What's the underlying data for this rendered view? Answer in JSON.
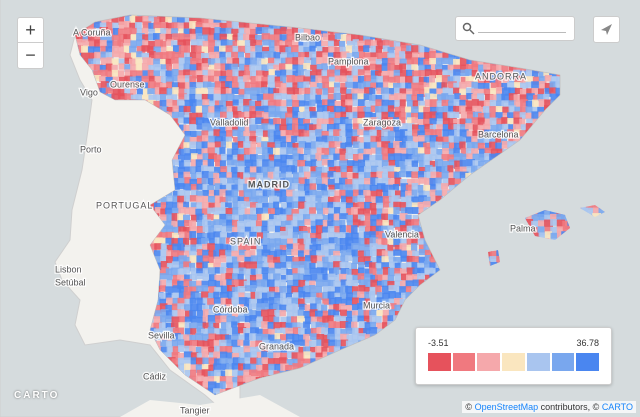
{
  "map": {
    "zoom_in": "+",
    "zoom_out": "−",
    "labels": [
      "A Coruña",
      "Ourense",
      "Vigo",
      "Porto",
      "Bilbao",
      "Pamplona",
      "ANDORRA",
      "Valladolid",
      "Zaragoza",
      "Barcelona",
      "MADRID",
      "PORTUGAL",
      "SPAIN",
      "Valencia",
      "Palma",
      "Lisbon",
      "Setúbal",
      "Murcia",
      "Córdoba",
      "Sevilla",
      "Granada",
      "Cádiz",
      "Tangier"
    ],
    "legend": {
      "min": -3.51,
      "max": 36.78,
      "colors": [
        "#e6525c",
        "#f0797f",
        "#f5a8ab",
        "#fae6bf",
        "#a9c5ef",
        "#79a7ee",
        "#4a86f0"
      ]
    },
    "logo": "CARTO",
    "attribution": [
      "©",
      "OpenStreetMap",
      "contributors, ©",
      "CARTO"
    ]
  }
}
